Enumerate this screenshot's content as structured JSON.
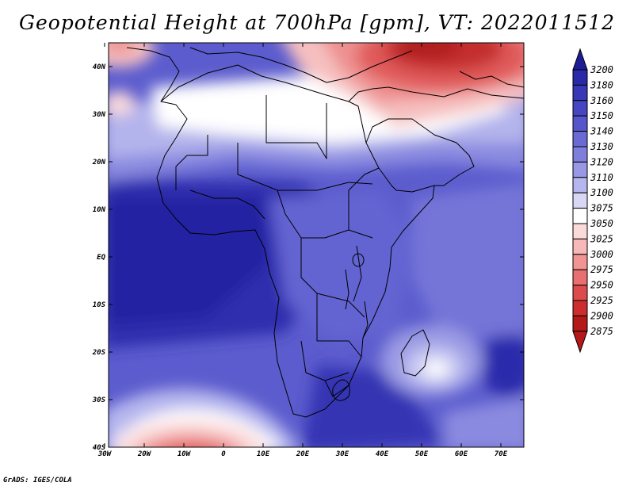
{
  "title": "Geopotential Height at 700hPa [gpm], VT: 2022011512",
  "credit": "GrADS: IGES/COLA",
  "lat_labels": [
    "40N",
    "30N",
    "20N",
    "10N",
    "EQ",
    "10S",
    "20S",
    "30S",
    "40S"
  ],
  "lon_labels": [
    "30W",
    "20W",
    "10W",
    "0",
    "10E",
    "20E",
    "30E",
    "40E",
    "50E",
    "60E",
    "70E"
  ],
  "colorbar": {
    "levels": [
      "3200",
      "3180",
      "3160",
      "3150",
      "3140",
      "3130",
      "3120",
      "3110",
      "3100",
      "3075",
      "3050",
      "3025",
      "3000",
      "2975",
      "2950",
      "2925",
      "2900",
      "2875"
    ],
    "colors": [
      "#1c1c96",
      "#2a2aa8",
      "#3838b6",
      "#4646c2",
      "#5656cc",
      "#6a6ad4",
      "#7e7edc",
      "#9898e4",
      "#b6b6ee",
      "#d8d8f6",
      "#ffffff",
      "#fbdada",
      "#f6b8b8",
      "#f09494",
      "#e87070",
      "#dc4c4c",
      "#cc2e2e",
      "#b41818"
    ]
  },
  "map": {
    "region": "Africa",
    "lon_range": [
      -30,
      75
    ],
    "lat_range": [
      -40,
      45
    ]
  }
}
